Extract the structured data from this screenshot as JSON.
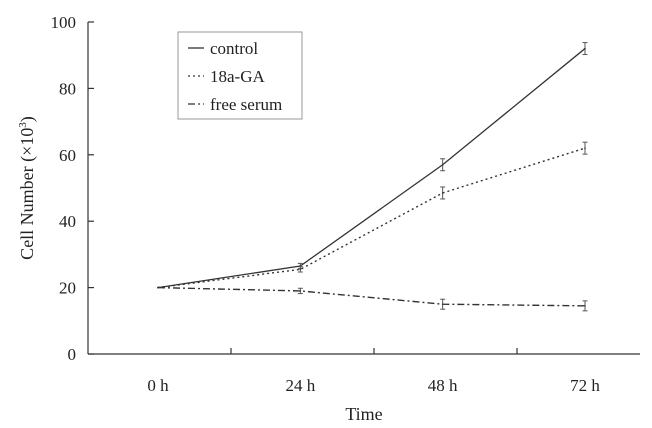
{
  "chart_data": {
    "type": "line",
    "title": "",
    "xlabel": "Time",
    "ylabel_main": "Cell Number (×10",
    "ylabel_sup": "3",
    "ylabel_close": ")",
    "categories": [
      "0 h",
      "24 h",
      "48 h",
      "72 h"
    ],
    "y_ticks": [
      "0",
      "20",
      "40",
      "60",
      "80",
      "100"
    ],
    "ylim": [
      0,
      100
    ],
    "grid": false,
    "legend_position": "top-left",
    "series": [
      {
        "name": "control",
        "style": "solid",
        "values": [
          20,
          26.5,
          57,
          92
        ],
        "errors": [
          0,
          0.8,
          1.8,
          1.8
        ],
        "color": "#333333"
      },
      {
        "name": "18a-GA",
        "style": "dotted",
        "values": [
          20,
          25.5,
          48.5,
          62
        ],
        "errors": [
          0,
          0.8,
          1.8,
          1.8
        ],
        "color": "#333333"
      },
      {
        "name": "free serum",
        "style": "dashdot",
        "values": [
          20,
          19,
          15,
          14.5
        ],
        "errors": [
          0,
          0.8,
          1.5,
          1.5
        ],
        "color": "#333333"
      }
    ]
  }
}
